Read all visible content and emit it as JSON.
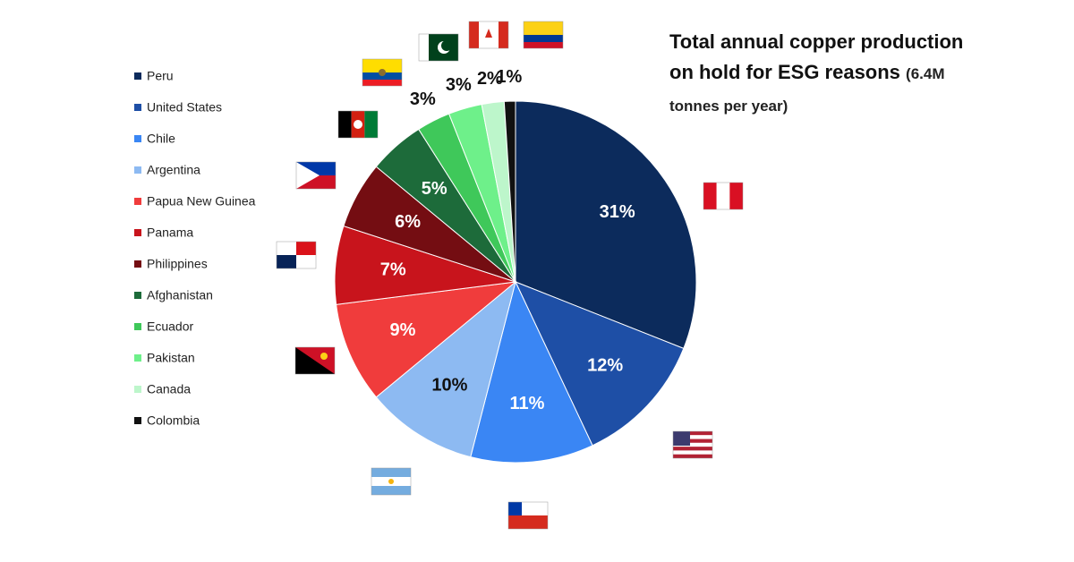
{
  "chart_data": {
    "type": "pie",
    "title": "Total annual copper production on hold for ESG reasons",
    "subtitle": "(6.4M tonnes per year)",
    "categories": [
      "Peru",
      "United States",
      "Chile",
      "Argentina",
      "Papua New Guinea",
      "Panama",
      "Philippines",
      "Afghanistan",
      "Ecuador",
      "Pakistan",
      "Canada",
      "Colombia"
    ],
    "values": [
      31,
      12,
      11,
      10,
      9,
      7,
      6,
      5,
      3,
      3,
      2,
      1
    ],
    "value_labels": [
      "31%",
      "12%",
      "11%",
      "10%",
      "9%",
      "7%",
      "6%",
      "5%",
      "3%",
      "3%",
      "2%",
      "1%"
    ],
    "colors": [
      "#0c2b5c",
      "#1e4fa6",
      "#3a86f4",
      "#8dbaf2",
      "#f03c3c",
      "#c8141c",
      "#740d12",
      "#1d6b3a",
      "#3fc85a",
      "#6ef08a",
      "#bdf6cb",
      "#111111"
    ],
    "legend": "left"
  }
}
